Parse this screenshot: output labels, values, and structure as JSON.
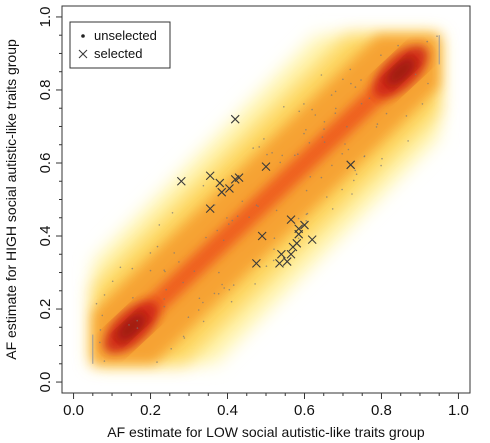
{
  "chart_data": {
    "type": "scatter",
    "title": "",
    "xlabel": "AF estimate for LOW social autistic-like traits group",
    "ylabel": "AF estimate for HIGH social autistic-like traits group",
    "xlim": [
      -0.03,
      1.03
    ],
    "ylim": [
      -0.03,
      1.03
    ],
    "xticks": [
      "0.0",
      "0.2",
      "0.4",
      "0.6",
      "0.8",
      "1.0"
    ],
    "yticks": [
      "0.0",
      "0.2",
      "0.4",
      "0.6",
      "0.8",
      "1.0"
    ],
    "grid": false,
    "legend_position": "top-left",
    "legend": [
      {
        "label": "unselected",
        "marker": "dot"
      },
      {
        "label": "selected",
        "marker": "x"
      }
    ],
    "density_colors": [
      "#fff5b0",
      "#fdd35a",
      "#f6a032",
      "#ee5a1e",
      "#cc2414",
      "#8a1510"
    ],
    "series": [
      {
        "name": "unselected",
        "marker": "dot",
        "density_band": {
          "x_range": [
            0.05,
            0.95
          ],
          "y_range": [
            0.05,
            0.95
          ],
          "centerline": "y = x",
          "peaks_at": [
            0.15,
            0.85
          ]
        }
      },
      {
        "name": "selected",
        "marker": "x",
        "points": [
          [
            0.28,
            0.55
          ],
          [
            0.355,
            0.565
          ],
          [
            0.38,
            0.545
          ],
          [
            0.385,
            0.52
          ],
          [
            0.405,
            0.53
          ],
          [
            0.42,
            0.555
          ],
          [
            0.42,
            0.72
          ],
          [
            0.43,
            0.56
          ],
          [
            0.355,
            0.475
          ],
          [
            0.5,
            0.59
          ],
          [
            0.49,
            0.4
          ],
          [
            0.475,
            0.325
          ],
          [
            0.535,
            0.325
          ],
          [
            0.565,
            0.445
          ],
          [
            0.585,
            0.42
          ],
          [
            0.6,
            0.43
          ],
          [
            0.58,
            0.38
          ],
          [
            0.565,
            0.35
          ],
          [
            0.57,
            0.37
          ],
          [
            0.585,
            0.405
          ],
          [
            0.62,
            0.39
          ],
          [
            0.72,
            0.595
          ],
          [
            0.54,
            0.35
          ],
          [
            0.555,
            0.33
          ]
        ]
      }
    ]
  }
}
